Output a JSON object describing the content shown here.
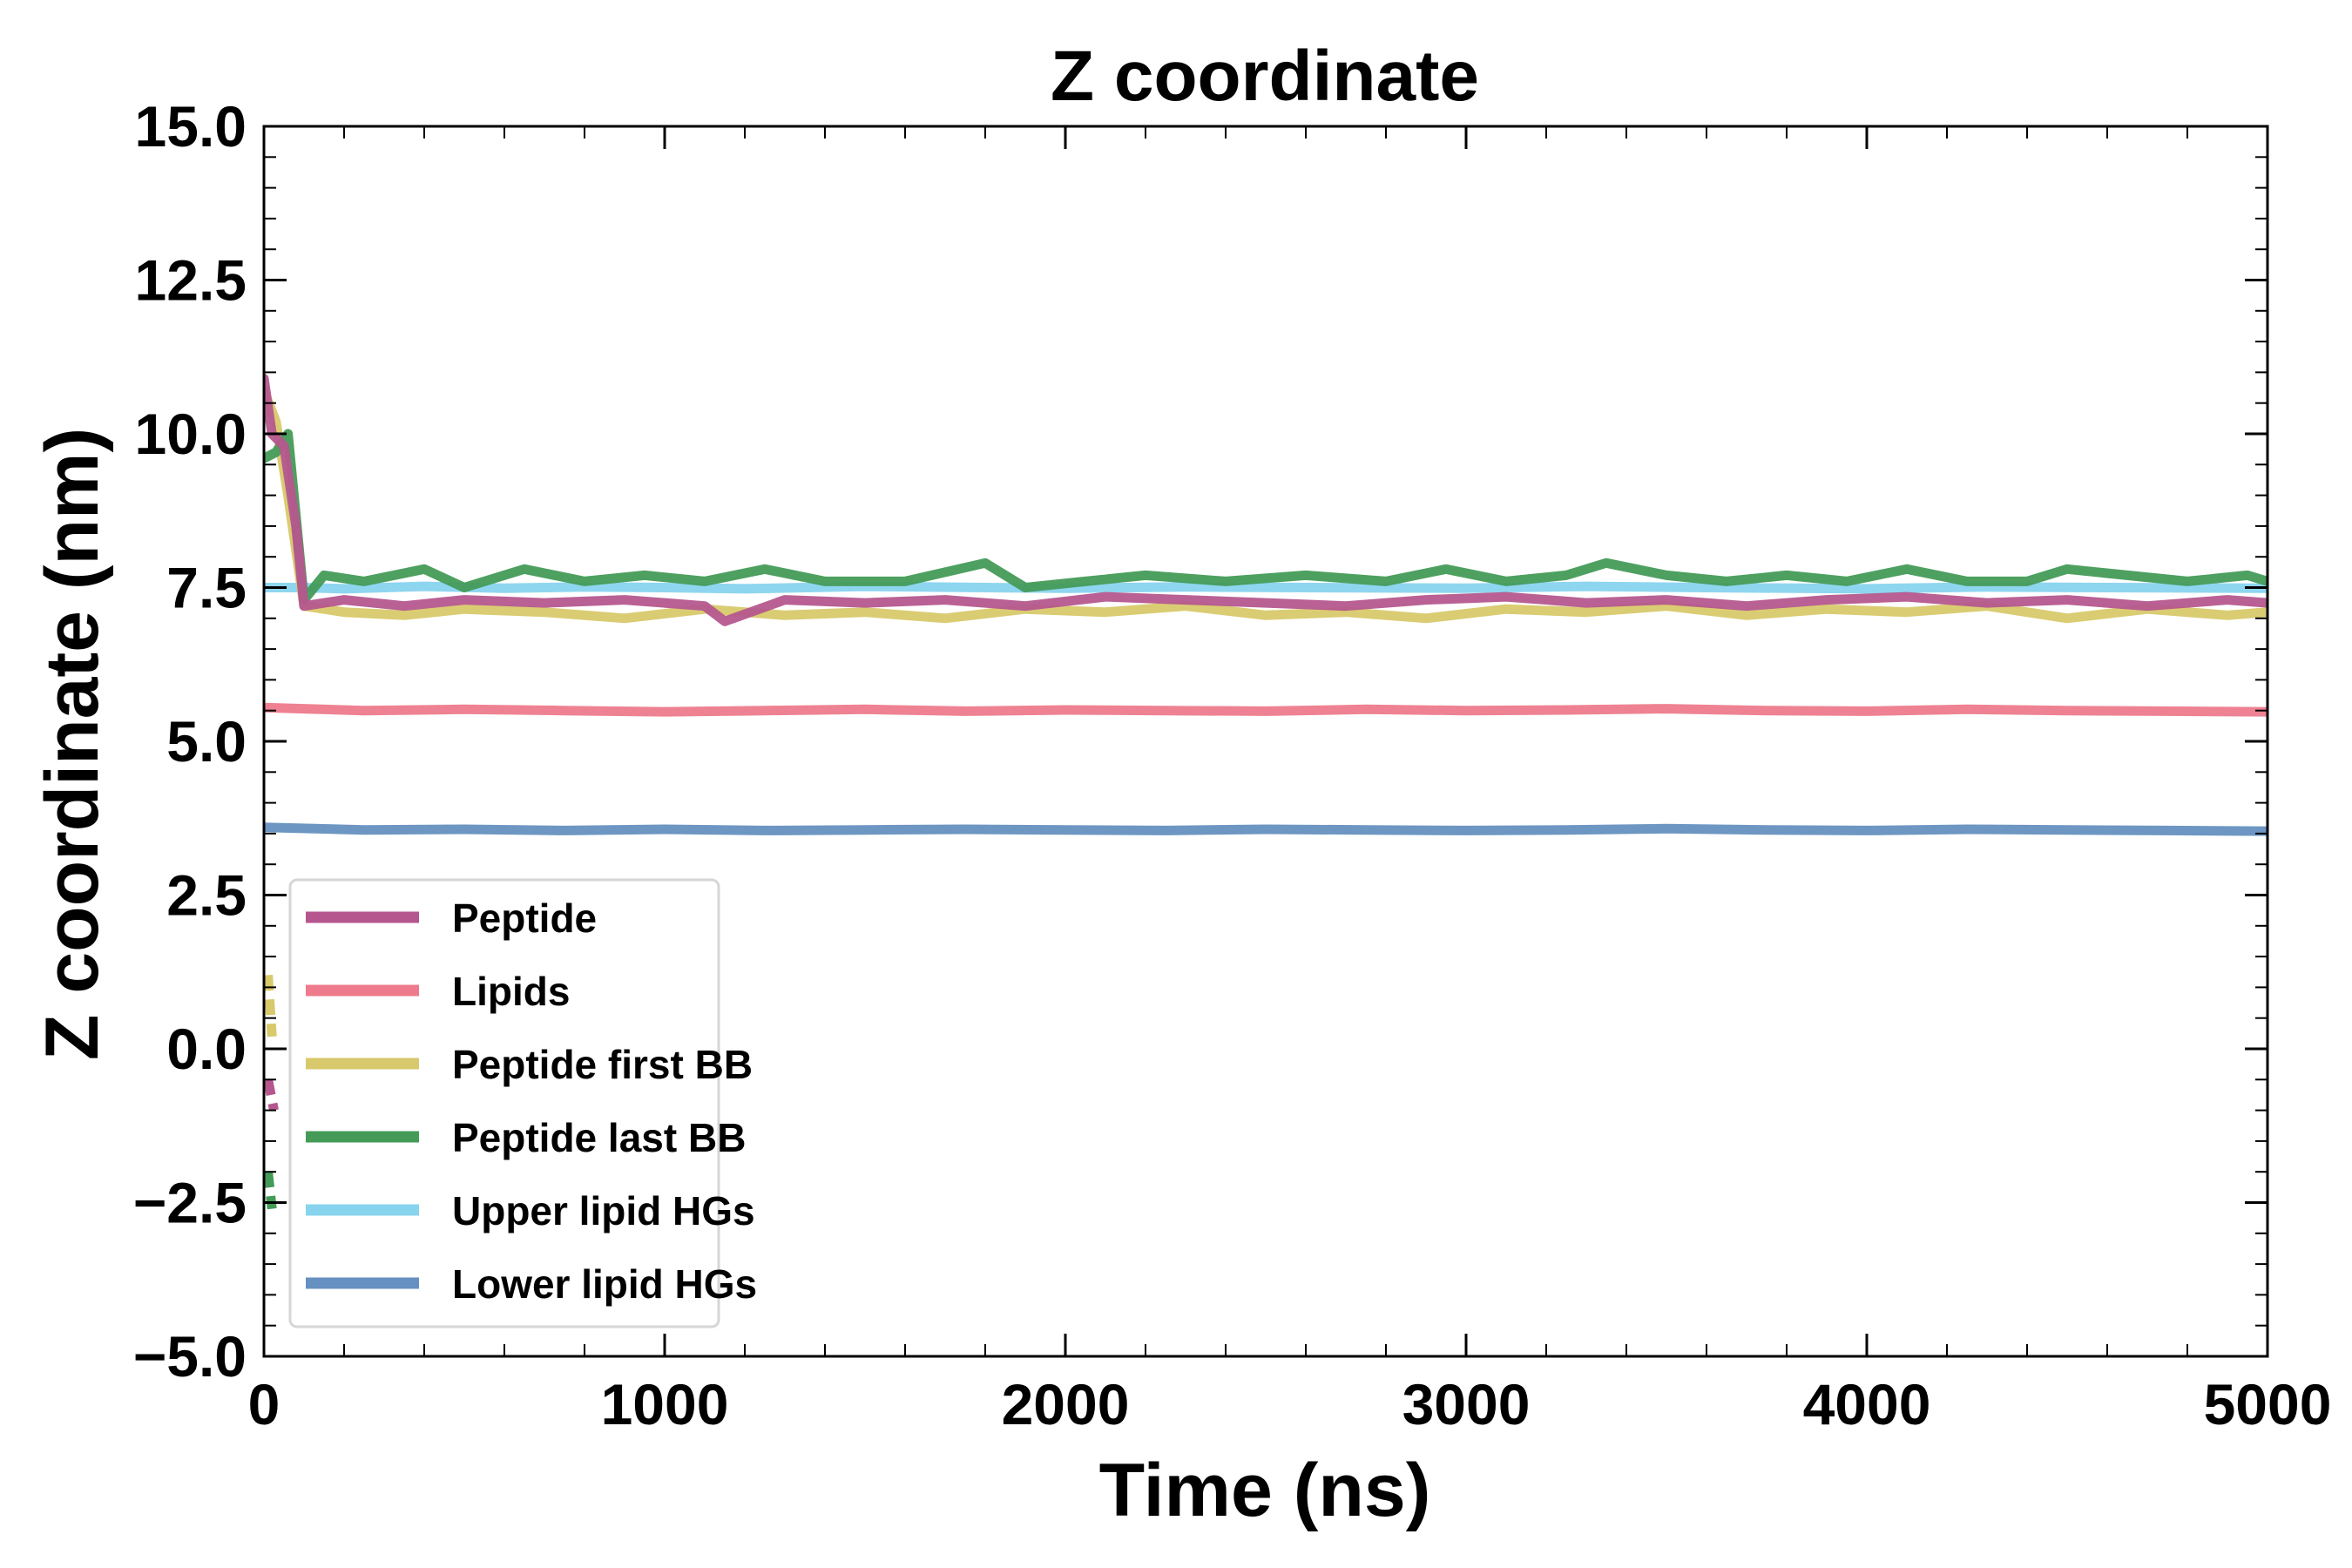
{
  "chart_data": {
    "type": "line",
    "title": "Z coordinate",
    "xlabel": "Time (ns)",
    "ylabel": "Z coordinate (nm)",
    "xlim": [
      0,
      5000
    ],
    "ylim": [
      -5.0,
      15.0
    ],
    "xticks": [
      0,
      1000,
      2000,
      3000,
      4000,
      5000
    ],
    "xtick_labels": [
      "0",
      "1000",
      "2000",
      "3000",
      "4000",
      "5000"
    ],
    "yticks": [
      -5.0,
      -2.5,
      0.0,
      2.5,
      5.0,
      7.5,
      10.0,
      12.5,
      15.0
    ],
    "ytick_labels": [
      "−5.0",
      "−2.5",
      "0.0",
      "2.5",
      "5.0",
      "7.5",
      "10.0",
      "12.5",
      "15.0"
    ],
    "grid": false,
    "legend_position": "lower-left",
    "series": [
      {
        "name": "Upper lipid HGs",
        "color": "#88d3ee",
        "x": [
          0,
          100,
          200,
          400,
          600,
          800,
          1000,
          1200,
          1500,
          1800,
          2000,
          2300,
          2600,
          3000,
          3300,
          3600,
          4000,
          4300,
          4600,
          5000
        ],
        "y": [
          7.5,
          7.5,
          7.48,
          7.52,
          7.49,
          7.51,
          7.5,
          7.48,
          7.52,
          7.5,
          7.49,
          7.51,
          7.5,
          7.49,
          7.52,
          7.5,
          7.48,
          7.51,
          7.5,
          7.49
        ]
      },
      {
        "name": "Peptide first BB",
        "color": "#d8c96c",
        "x": [
          0,
          30,
          60,
          100,
          200,
          350,
          500,
          700,
          900,
          1100,
          1300,
          1500,
          1700,
          1900,
          2100,
          2300,
          2500,
          2700,
          2900,
          3100,
          3300,
          3500,
          3700,
          3900,
          4100,
          4300,
          4500,
          4700,
          4900,
          5000
        ],
        "y": [
          10.7,
          10.2,
          9.0,
          7.2,
          7.1,
          7.05,
          7.15,
          7.1,
          7.0,
          7.15,
          7.05,
          7.1,
          7.0,
          7.15,
          7.1,
          7.2,
          7.05,
          7.1,
          7.0,
          7.15,
          7.1,
          7.2,
          7.05,
          7.15,
          7.1,
          7.2,
          7.0,
          7.15,
          7.05,
          7.1
        ]
      },
      {
        "name": "Peptide last BB",
        "color": "#449b58",
        "x": [
          0,
          30,
          60,
          100,
          150,
          250,
          400,
          500,
          650,
          800,
          950,
          1100,
          1250,
          1400,
          1600,
          1800,
          1900,
          2050,
          2200,
          2400,
          2600,
          2800,
          2950,
          3100,
          3250,
          3350,
          3500,
          3650,
          3800,
          3950,
          4100,
          4250,
          4400,
          4500,
          4650,
          4800,
          4950,
          5000
        ],
        "y": [
          9.6,
          9.7,
          10.0,
          7.3,
          7.7,
          7.6,
          7.8,
          7.5,
          7.8,
          7.6,
          7.7,
          7.6,
          7.8,
          7.6,
          7.6,
          7.9,
          7.5,
          7.6,
          7.7,
          7.6,
          7.7,
          7.6,
          7.8,
          7.6,
          7.7,
          7.9,
          7.7,
          7.6,
          7.7,
          7.6,
          7.8,
          7.6,
          7.6,
          7.8,
          7.7,
          7.6,
          7.7,
          7.6
        ]
      },
      {
        "name": "Peptide",
        "color": "#b5578e",
        "x": [
          0,
          20,
          50,
          80,
          100,
          200,
          350,
          500,
          700,
          900,
          1100,
          1150,
          1300,
          1500,
          1700,
          1900,
          2100,
          2300,
          2500,
          2700,
          2900,
          3100,
          3300,
          3500,
          3700,
          3900,
          4100,
          4300,
          4500,
          4700,
          4900,
          5000
        ],
        "y": [
          10.9,
          10.0,
          9.8,
          8.5,
          7.2,
          7.3,
          7.2,
          7.3,
          7.25,
          7.3,
          7.2,
          6.95,
          7.3,
          7.25,
          7.3,
          7.2,
          7.35,
          7.3,
          7.25,
          7.2,
          7.3,
          7.35,
          7.25,
          7.3,
          7.2,
          7.3,
          7.35,
          7.25,
          7.3,
          7.2,
          7.3,
          7.25
        ]
      },
      {
        "name": "Lipids",
        "color": "#ed7b8c",
        "x": [
          0,
          250,
          500,
          750,
          1000,
          1250,
          1500,
          1750,
          2000,
          2250,
          2500,
          2750,
          3000,
          3250,
          3500,
          3750,
          4000,
          4250,
          4500,
          4750,
          5000
        ],
        "y": [
          5.55,
          5.5,
          5.52,
          5.5,
          5.48,
          5.5,
          5.52,
          5.49,
          5.51,
          5.5,
          5.49,
          5.52,
          5.5,
          5.51,
          5.53,
          5.5,
          5.49,
          5.52,
          5.5,
          5.49,
          5.48
        ]
      },
      {
        "name": "Lower lipid HGs",
        "color": "#6590bf",
        "x": [
          0,
          250,
          500,
          750,
          1000,
          1250,
          1500,
          1750,
          2000,
          2250,
          2500,
          2750,
          3000,
          3250,
          3500,
          3750,
          4000,
          4250,
          4500,
          4750,
          5000
        ],
        "y": [
          3.6,
          3.56,
          3.57,
          3.55,
          3.57,
          3.55,
          3.56,
          3.57,
          3.56,
          3.55,
          3.57,
          3.56,
          3.55,
          3.56,
          3.58,
          3.56,
          3.55,
          3.57,
          3.56,
          3.55,
          3.54
        ]
      }
    ],
    "legend": [
      {
        "name": "Peptide",
        "color": "#b5578e"
      },
      {
        "name": "Lipids",
        "color": "#ed7b8c"
      },
      {
        "name": "Peptide first BB",
        "color": "#d8c96c"
      },
      {
        "name": "Peptide last BB",
        "color": "#449b58"
      },
      {
        "name": "Upper lipid HGs",
        "color": "#88d3ee"
      },
      {
        "name": "Lower lipid HGs",
        "color": "#6590bf"
      }
    ],
    "annotations": [
      {
        "name": "Peptide first BB",
        "color": "#d8c96c",
        "x": [
          10,
          20
        ],
        "y": [
          1.2,
          0.2
        ]
      },
      {
        "name": "Peptide",
        "color": "#b5578e",
        "x": [
          10,
          25
        ],
        "y": [
          -0.5,
          -1.0
        ]
      },
      {
        "name": "Peptide last BB",
        "color": "#449b58",
        "x": [
          10,
          20
        ],
        "y": [
          -2.0,
          -2.6
        ]
      }
    ]
  }
}
